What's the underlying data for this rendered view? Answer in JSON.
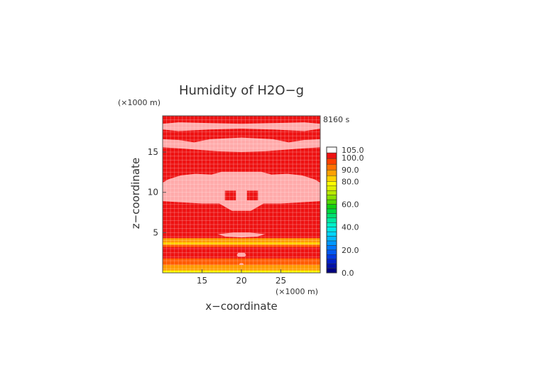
{
  "chart_data": {
    "type": "heatmap",
    "title": "Humidity of H2O−g",
    "time_label": "8160 s",
    "xlabel": "x−coordinate",
    "ylabel": "z−coordinate",
    "x_unit": "(×1000 m)",
    "y_unit": "(×1000 m)",
    "xlim": [
      10,
      30
    ],
    "ylim": [
      0,
      19.5
    ],
    "x_ticks": [
      15,
      20,
      25
    ],
    "y_ticks": [
      5,
      10,
      15
    ],
    "grid": true,
    "colorbar": {
      "labels": [
        "0.0",
        "20.0",
        "40.0",
        "60.0",
        "80.0",
        "90.0",
        "100.0",
        "105.0"
      ],
      "levels": [
        {
          "min": 0,
          "max": 20,
          "colors": [
            "#000080",
            "#0010a8",
            "#0020c8",
            "#0038e0",
            "#0058f0"
          ]
        },
        {
          "min": 20,
          "max": 40,
          "colors": [
            "#0078ff",
            "#0098ff",
            "#00b8ff",
            "#00d4f8",
            "#00e8e8"
          ]
        },
        {
          "min": 40,
          "max": 60,
          "colors": [
            "#00f0c8",
            "#00e8a0",
            "#00e070",
            "#00d840",
            "#10d010"
          ]
        },
        {
          "min": 60,
          "max": 80,
          "colors": [
            "#50d800",
            "#88e000",
            "#b8e800",
            "#e0f000",
            "#ffff00"
          ]
        },
        {
          "min": 80,
          "max": 90,
          "colors": [
            "#ffd000",
            "#ffa000"
          ]
        },
        {
          "min": 90,
          "max": 100,
          "colors": [
            "#ff7000",
            "#ff4000"
          ]
        },
        {
          "min": 100,
          "max": 105,
          "colors": [
            "#ee1111"
          ]
        },
        {
          "min": 105,
          "max": 110,
          "colors": [
            "#ffffff"
          ]
        }
      ]
    },
    "bands": [
      {
        "z0": 19.2,
        "z1": 19.5,
        "color": "#ee1111"
      },
      {
        "z0": 0.0,
        "z1": 0.3,
        "color": "#ffff00"
      },
      {
        "z0": 0.3,
        "z1": 1.0,
        "color": "#ff9a00"
      },
      {
        "z0": 1.0,
        "z1": 1.8,
        "color": "#ff5a00"
      },
      {
        "z0": 1.8,
        "z1": 3.2,
        "color": "#ee1111"
      },
      {
        "z0": 3.2,
        "z1": 3.5,
        "color": "#ff5a00"
      },
      {
        "z0": 3.5,
        "z1": 3.8,
        "color": "#ffd000"
      },
      {
        "z0": 3.8,
        "z1": 4.3,
        "color": "#ff9a00"
      }
    ],
    "supersaturated_regions": [
      {
        "points": [
          [
            10,
            18.5
          ],
          [
            12,
            18.7
          ],
          [
            16,
            18.6
          ],
          [
            20,
            18.5
          ],
          [
            24,
            18.6
          ],
          [
            28,
            18.7
          ],
          [
            30,
            18.5
          ],
          [
            30,
            17.9
          ],
          [
            28,
            17.6
          ],
          [
            24,
            17.8
          ],
          [
            20,
            17.9
          ],
          [
            16,
            17.8
          ],
          [
            12,
            17.6
          ],
          [
            10,
            17.8
          ]
        ]
      },
      {
        "points": [
          [
            10,
            16.6
          ],
          [
            12,
            16.5
          ],
          [
            14,
            16.2
          ],
          [
            16,
            16.6
          ],
          [
            20,
            16.8
          ],
          [
            24,
            16.6
          ],
          [
            26,
            16.2
          ],
          [
            28,
            16.5
          ],
          [
            30,
            16.6
          ],
          [
            30,
            15.6
          ],
          [
            27,
            15.4
          ],
          [
            23,
            15.1
          ],
          [
            20,
            15.0
          ],
          [
            17,
            15.1
          ],
          [
            13,
            15.4
          ],
          [
            10,
            15.6
          ]
        ]
      },
      {
        "points": [
          [
            14.2,
            12.3
          ],
          [
            16.2,
            12.2
          ],
          [
            17.5,
            12.55
          ],
          [
            22.5,
            12.55
          ],
          [
            23.8,
            12.2
          ],
          [
            25.8,
            12.3
          ],
          [
            27.7,
            12.1
          ],
          [
            29.3,
            11.6
          ],
          [
            30,
            11.2
          ],
          [
            30,
            8.9
          ],
          [
            25,
            8.6
          ],
          [
            22.8,
            8.6
          ],
          [
            21.2,
            7.7
          ],
          [
            18.8,
            7.7
          ],
          [
            17.2,
            8.6
          ],
          [
            15,
            8.6
          ],
          [
            10,
            8.9
          ],
          [
            10,
            11.2
          ],
          [
            10.7,
            11.6
          ],
          [
            12.3,
            12.1
          ]
        ]
      },
      {
        "points": [
          [
            17,
            4.8
          ],
          [
            19,
            5.0
          ],
          [
            21,
            5.0
          ],
          [
            23,
            4.8
          ],
          [
            22,
            4.5
          ],
          [
            20,
            4.4
          ],
          [
            18,
            4.5
          ]
        ]
      },
      {
        "points": [
          [
            19.6,
            2.5
          ],
          [
            20.4,
            2.5
          ],
          [
            20.6,
            2.2
          ],
          [
            20.4,
            2.0
          ],
          [
            19.6,
            2.0
          ],
          [
            19.4,
            2.2
          ]
        ]
      },
      {
        "points": [
          [
            19.8,
            1.2
          ],
          [
            20.2,
            1.2
          ],
          [
            20.3,
            1.0
          ],
          [
            19.7,
            1.0
          ]
        ]
      }
    ],
    "subsaturated_islands": [
      {
        "points": [
          [
            17.9,
            10.2
          ],
          [
            19.3,
            10.2
          ],
          [
            19.3,
            9.0
          ],
          [
            17.9,
            9.0
          ]
        ]
      },
      {
        "points": [
          [
            20.7,
            10.2
          ],
          [
            22.1,
            10.2
          ],
          [
            22.1,
            9.0
          ],
          [
            20.7,
            9.0
          ]
        ]
      }
    ]
  }
}
